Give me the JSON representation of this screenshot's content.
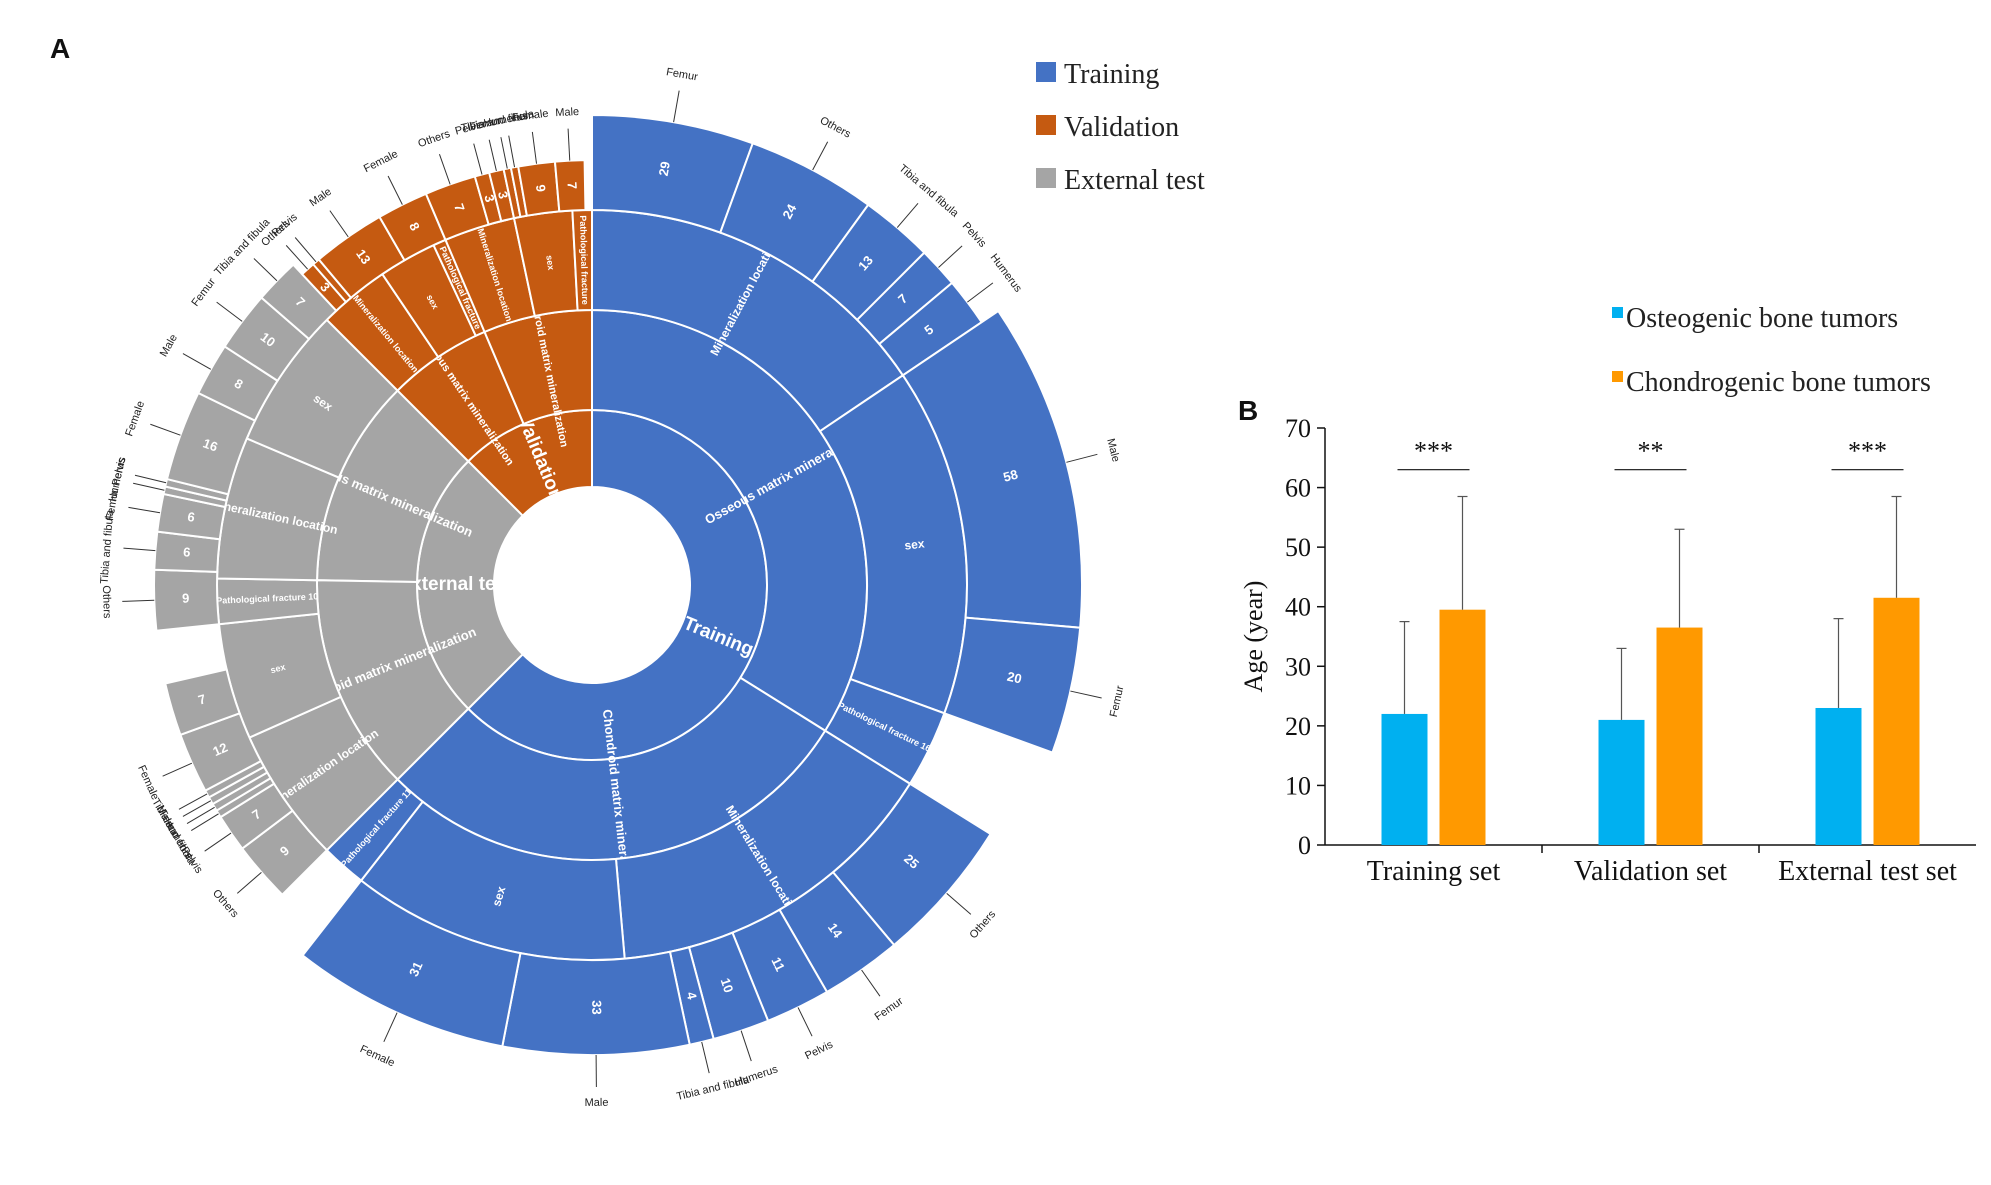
{
  "panel_a": {
    "letter": "A",
    "legend": [
      {
        "label": "Training",
        "color": "#4472C4"
      },
      {
        "label": "Validation",
        "color": "#C55A11"
      },
      {
        "label": "External test",
        "color": "#A5A5A5"
      }
    ]
  },
  "panel_b": {
    "letter": "B",
    "legend": [
      {
        "label": "Osteogenic bone tumors",
        "color": "#00B0F0"
      },
      {
        "label": "Chondrogenic bone tumors",
        "color": "#FF9900"
      }
    ]
  },
  "chart_data": [
    {
      "type": "sunburst",
      "title": "",
      "rings": [
        "dataset",
        "mineralization type",
        "feature",
        "category"
      ],
      "segments": [
        {
          "dataset": "Training",
          "start_deg": 0,
          "end_deg": 225,
          "color": "#4472C4"
        },
        {
          "dataset": "Validation",
          "start_deg": 315,
          "end_deg": 360,
          "color": "#C55A11"
        },
        {
          "dataset": "External test",
          "start_deg": 225,
          "end_deg": 315,
          "color": "#A5A5A5"
        }
      ],
      "ring2": [
        {
          "label": "Osseous matrix mineralization",
          "dataset": "Training",
          "start_deg": 0,
          "end_deg": 122
        },
        {
          "label": "Chondroid matrix mineralization",
          "dataset": "Training",
          "start_deg": 122,
          "end_deg": 225
        },
        {
          "label": "Osseous matrix mineralization",
          "dataset": "External test",
          "start_deg": 271,
          "end_deg": 315
        },
        {
          "label": "Chondroid matrix mineralization",
          "dataset": "External test",
          "start_deg": 225,
          "end_deg": 271
        },
        {
          "label": "Osseous matrix mineralization",
          "dataset": "Validation",
          "start_deg": 315,
          "end_deg": 337
        },
        {
          "label": "Chondroid matrix mineralization",
          "dataset": "Validation",
          "start_deg": 337,
          "end_deg": 360
        }
      ],
      "ring3": [
        {
          "label": "Mineralization location",
          "start_deg": 0,
          "end_deg": 56,
          "dataset": "Training"
        },
        {
          "label": "sex",
          "start_deg": 56,
          "end_deg": 110,
          "dataset": "Training"
        },
        {
          "label": "Pathological fracture 16",
          "start_deg": 110,
          "end_deg": 122,
          "dataset": "Training"
        },
        {
          "label": "Mineralization location",
          "start_deg": 122,
          "end_deg": 175,
          "dataset": "Training"
        },
        {
          "label": "sex",
          "start_deg": 175,
          "end_deg": 218,
          "dataset": "Training"
        },
        {
          "label": "Pathological fracture 11",
          "start_deg": 218,
          "end_deg": 225,
          "dataset": "Training"
        },
        {
          "label": "Mineralization location",
          "start_deg": 225,
          "end_deg": 246,
          "dataset": "External test"
        },
        {
          "label": "sex",
          "start_deg": 246,
          "end_deg": 264,
          "dataset": "External test"
        },
        {
          "label": "Pathological fracture 10",
          "start_deg": 264,
          "end_deg": 271,
          "dataset": "External test"
        },
        {
          "label": "Mineralization location",
          "start_deg": 271,
          "end_deg": 293,
          "dataset": "External test"
        },
        {
          "label": "sex",
          "start_deg": 293,
          "end_deg": 315,
          "dataset": "External test"
        },
        {
          "label": "Mineralization location",
          "start_deg": 315,
          "end_deg": 326,
          "dataset": "Validation"
        },
        {
          "label": "sex",
          "start_deg": 326,
          "end_deg": 335,
          "dataset": "Validation"
        },
        {
          "label": "Pathological fracture",
          "start_deg": 335,
          "end_deg": 337,
          "dataset": "Validation"
        },
        {
          "label": "Mineralization location",
          "start_deg": 337,
          "end_deg": 348,
          "dataset": "Validation"
        },
        {
          "label": "sex",
          "start_deg": 348,
          "end_deg": 357,
          "dataset": "Validation"
        },
        {
          "label": "Pathological fracture",
          "start_deg": 357,
          "end_deg": 360,
          "dataset": "Validation"
        }
      ],
      "ring4": [
        {
          "label": "Femur",
          "value": "29",
          "start_deg": 0,
          "end_deg": 20
        },
        {
          "label": "Others",
          "value": "24",
          "start_deg": 20,
          "end_deg": 36
        },
        {
          "label": "Tibia and fibula",
          "value": "13",
          "start_deg": 36,
          "end_deg": 45
        },
        {
          "label": "Pelvis",
          "value": "7",
          "start_deg": 45,
          "end_deg": 50
        },
        {
          "label": "Humerus",
          "value": "5",
          "start_deg": 50,
          "end_deg": 56
        },
        {
          "label": "Male",
          "value": "58",
          "start_deg": 56,
          "end_deg": 95
        },
        {
          "label": "Femur",
          "value": "20",
          "start_deg": 95,
          "end_deg": 110
        },
        {
          "label": "Others",
          "value": "25",
          "start_deg": 122,
          "end_deg": 140
        },
        {
          "label": "Femur",
          "value": "14",
          "start_deg": 140,
          "end_deg": 150
        },
        {
          "label": "Pelvis",
          "value": "11",
          "start_deg": 150,
          "end_deg": 158
        },
        {
          "label": "Humerus",
          "value": "10",
          "start_deg": 158,
          "end_deg": 165
        },
        {
          "label": "Tibia and fibula",
          "value": "4",
          "start_deg": 165,
          "end_deg": 168
        },
        {
          "label": "Male",
          "value": "33",
          "start_deg": 168,
          "end_deg": 191
        },
        {
          "label": "Female",
          "value": "31",
          "start_deg": 191,
          "end_deg": 218
        },
        {
          "label": "Others",
          "value": "9",
          "start_deg": 225,
          "end_deg": 233
        },
        {
          "label": "Pelvis",
          "value": "7",
          "start_deg": 233,
          "end_deg": 238
        },
        {
          "label": "Humerus",
          "value": "",
          "start_deg": 238,
          "end_deg": 239
        },
        {
          "label": "Tibia and fibula",
          "value": "",
          "start_deg": 239,
          "end_deg": 240
        },
        {
          "label": "Femur",
          "value": "",
          "start_deg": 240,
          "end_deg": 241
        },
        {
          "label": "Male",
          "value": "",
          "start_deg": 241,
          "end_deg": 242
        },
        {
          "label": "Female",
          "value": "12",
          "start_deg": 242,
          "end_deg": 250
        },
        {
          "label": "",
          "value": "7",
          "start_deg": 250,
          "end_deg": 257
        },
        {
          "label": "Others",
          "value": "9",
          "start_deg": 264,
          "end_deg": 272
        },
        {
          "label": "Tibia and fibula",
          "value": "6",
          "start_deg": 272,
          "end_deg": 277
        },
        {
          "label": "Femur",
          "value": "6",
          "start_deg": 277,
          "end_deg": 282
        },
        {
          "label": "Humerus",
          "value": "",
          "start_deg": 282,
          "end_deg": 283
        },
        {
          "label": "Pelvis",
          "value": "",
          "start_deg": 283,
          "end_deg": 284
        },
        {
          "label": "Female",
          "value": "16",
          "start_deg": 284,
          "end_deg": 296
        },
        {
          "label": "Male",
          "value": "8",
          "start_deg": 296,
          "end_deg": 303
        },
        {
          "label": "Femur",
          "value": "10",
          "start_deg": 303,
          "end_deg": 311
        },
        {
          "label": "Tibia and fibula",
          "value": "7",
          "start_deg": 311,
          "end_deg": 317
        },
        {
          "label": "Others",
          "value": "3",
          "start_deg": 317,
          "end_deg": 319
        },
        {
          "label": "Pelvis",
          "value": "",
          "start_deg": 319,
          "end_deg": 320
        },
        {
          "label": "Male",
          "value": "13",
          "start_deg": 320,
          "end_deg": 330
        },
        {
          "label": "Female",
          "value": "8",
          "start_deg": 330,
          "end_deg": 337
        },
        {
          "label": "Others",
          "value": "7",
          "start_deg": 337,
          "end_deg": 344
        },
        {
          "label": "Pelvis",
          "value": "3",
          "start_deg": 344,
          "end_deg": 346
        },
        {
          "label": "Femur",
          "value": "3",
          "start_deg": 346,
          "end_deg": 348
        },
        {
          "label": "Tibia and fibula",
          "value": "",
          "start_deg": 348,
          "end_deg": 349
        },
        {
          "label": "Humerus",
          "value": "",
          "start_deg": 349,
          "end_deg": 350
        },
        {
          "label": "Female",
          "value": "9",
          "start_deg": 350,
          "end_deg": 355
        },
        {
          "label": "Male",
          "value": "7",
          "start_deg": 355,
          "end_deg": 359
        }
      ]
    },
    {
      "type": "bar",
      "title": "",
      "categories": [
        "Training set",
        "Validation set",
        "External test set"
      ],
      "series": [
        {
          "name": "Osteogenic bone tumors",
          "color": "#00B0F0",
          "values": [
            22,
            21,
            23
          ],
          "error": [
            15.5,
            12,
            15
          ]
        },
        {
          "name": "Chondrogenic bone tumors",
          "color": "#FF9900",
          "values": [
            39.5,
            36.5,
            41.5
          ],
          "error": [
            19,
            16.5,
            17
          ]
        }
      ],
      "significance": [
        "***",
        "**",
        "***"
      ],
      "ylabel": "Age (year)",
      "ylim": [
        0,
        70
      ],
      "yticks": [
        "0",
        "10",
        "20",
        "30",
        "40",
        "50",
        "60",
        "70"
      ],
      "grid": false,
      "legend_position": "top-right"
    }
  ]
}
